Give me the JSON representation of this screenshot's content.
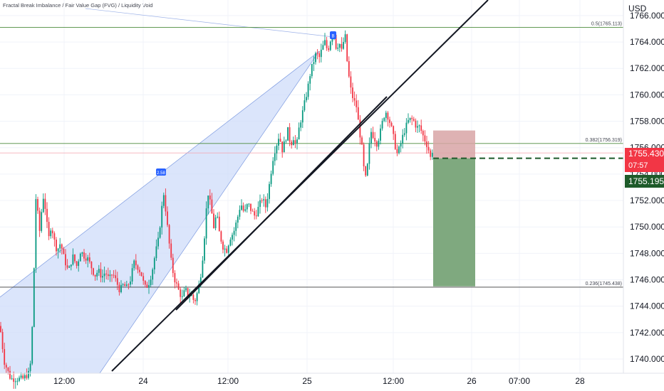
{
  "indicator_title": "Fractal Break Imbalance / Fair Value Gap (FVG) / Liquidity Void",
  "currency": "USD",
  "colors": {
    "up": "#089981",
    "down": "#f23645",
    "fib_line": "#4b8b3b",
    "fib_mid_line": "#1e5a2a",
    "triangle_fill": "#cfdcfa",
    "stop_zone": "#d8a4a6",
    "target_zone": "#7fa97f",
    "current_price_bg": "#f23645",
    "entry_price_bg": "#1e5b2a"
  },
  "price_tags": {
    "current_price": "1755.430",
    "countdown": "07:57",
    "entry_price": "1755.195"
  },
  "markers": [
    {
      "label": "2.58"
    },
    {
      "label": "B"
    }
  ],
  "chart_data": {
    "type": "candlestick",
    "x_tick_labels": [
      "12:00",
      "24",
      "12:00",
      "25",
      "12:00",
      "26",
      "07:00",
      "28"
    ],
    "y_tick_labels": [
      "1740.000",
      "1742.000",
      "1744.000",
      "1746.000",
      "1748.000",
      "1750.000",
      "1752.000",
      "1754.000",
      "1756.000",
      "1758.000",
      "1760.000",
      "1762.000",
      "1764.000",
      "1766.000"
    ],
    "ylim": [
      1739.6,
      1766.6
    ],
    "fib_levels": [
      {
        "label": "0.5(1765.113)",
        "value": 1765.113
      },
      {
        "label": "0.382(1756.319)",
        "value": 1756.319
      },
      {
        "label": "0.236(1745.438)",
        "value": 1745.438
      }
    ],
    "pink_reference_level": 1755.6,
    "position": {
      "entry": 1755.195,
      "stop": 1757.3,
      "target": 1745.5
    },
    "price_path": [
      [
        0,
        1742.5
      ],
      [
        6,
        1739.8
      ],
      [
        15,
        1738.5
      ],
      [
        32,
        1738.5
      ],
      [
        42,
        1739.0
      ],
      [
        45,
        1742.0
      ],
      [
        47,
        1745.5
      ],
      [
        49,
        1749.0
      ],
      [
        51,
        1753.5
      ],
      [
        53,
        1751.0
      ],
      [
        56,
        1749.5
      ],
      [
        60,
        1752.5
      ],
      [
        64,
        1751.3
      ],
      [
        68,
        1749.0
      ],
      [
        72,
        1750.2
      ],
      [
        76,
        1749.0
      ],
      [
        80,
        1748.2
      ],
      [
        85,
        1748.8
      ],
      [
        90,
        1747.6
      ],
      [
        96,
        1746.6
      ],
      [
        102,
        1747.8
      ],
      [
        108,
        1747.0
      ],
      [
        113,
        1748.2
      ],
      [
        118,
        1747.8
      ],
      [
        123,
        1747.6
      ],
      [
        128,
        1747.0
      ],
      [
        133,
        1746.3
      ],
      [
        138,
        1746.7
      ],
      [
        143,
        1746.2
      ],
      [
        148,
        1746.6
      ],
      [
        153,
        1746.0
      ],
      [
        158,
        1746.5
      ],
      [
        163,
        1745.9
      ],
      [
        168,
        1745.2
      ],
      [
        173,
        1745.6
      ],
      [
        178,
        1745.4
      ],
      [
        183,
        1746.0
      ],
      [
        188,
        1747.3
      ],
      [
        193,
        1747.0
      ],
      [
        198,
        1746.5
      ],
      [
        203,
        1745.4
      ],
      [
        208,
        1745.6
      ],
      [
        213,
        1746.5
      ],
      [
        218,
        1748.0
      ],
      [
        223,
        1749.2
      ],
      [
        226,
        1751.0
      ],
      [
        230,
        1752.6
      ],
      [
        234,
        1750.5
      ],
      [
        237,
        1749.0
      ],
      [
        240,
        1747.5
      ],
      [
        244,
        1746.2
      ],
      [
        248,
        1745.6
      ],
      [
        252,
        1745.0
      ],
      [
        256,
        1744.6
      ],
      [
        260,
        1745.3
      ],
      [
        264,
        1744.8
      ],
      [
        268,
        1744.9
      ],
      [
        273,
        1744.3
      ],
      [
        278,
        1745.2
      ],
      [
        282,
        1746.5
      ],
      [
        286,
        1748.5
      ],
      [
        289,
        1751.0
      ],
      [
        292,
        1752.6
      ],
      [
        296,
        1751.5
      ],
      [
        300,
        1750.0
      ],
      [
        304,
        1751.0
      ],
      [
        308,
        1749.5
      ],
      [
        313,
        1748.5
      ],
      [
        318,
        1748.2
      ],
      [
        323,
        1749.2
      ],
      [
        328,
        1749.6
      ],
      [
        333,
        1750.6
      ],
      [
        338,
        1751.8
      ],
      [
        343,
        1751.0
      ],
      [
        348,
        1751.8
      ],
      [
        353,
        1751.2
      ],
      [
        358,
        1750.8
      ],
      [
        363,
        1751.5
      ],
      [
        368,
        1752.2
      ],
      [
        373,
        1751.5
      ],
      [
        377,
        1752.8
      ],
      [
        380,
        1754.0
      ],
      [
        384,
        1755.5
      ],
      [
        388,
        1756.2
      ],
      [
        392,
        1757.0
      ],
      [
        396,
        1755.8
      ],
      [
        400,
        1756.5
      ],
      [
        404,
        1757.3
      ],
      [
        408,
        1756.2
      ],
      [
        412,
        1756.8
      ],
      [
        416,
        1756.0
      ],
      [
        420,
        1757.6
      ],
      [
        424,
        1758.5
      ],
      [
        428,
        1759.5
      ],
      [
        432,
        1760.5
      ],
      [
        436,
        1761.8
      ],
      [
        440,
        1762.5
      ],
      [
        444,
        1763.2
      ],
      [
        448,
        1762.8
      ],
      [
        452,
        1763.5
      ],
      [
        456,
        1764.0
      ],
      [
        460,
        1763.3
      ],
      [
        464,
        1764.2
      ],
      [
        468,
        1765.0
      ],
      [
        472,
        1763.5
      ],
      [
        476,
        1764.0
      ],
      [
        480,
        1763.2
      ],
      [
        484,
        1764.8
      ],
      [
        488,
        1762.0
      ],
      [
        492,
        1760.5
      ],
      [
        496,
        1759.6
      ],
      [
        500,
        1759.2
      ],
      [
        504,
        1757.5
      ],
      [
        508,
        1756.0
      ],
      [
        511,
        1754.2
      ],
      [
        514,
        1753.5
      ],
      [
        518,
        1756.0
      ],
      [
        521,
        1757.2
      ],
      [
        525,
        1756.8
      ],
      [
        529,
        1756.3
      ],
      [
        533,
        1757.0
      ],
      [
        537,
        1758.0
      ],
      [
        541,
        1758.8
      ],
      [
        545,
        1758.3
      ],
      [
        549,
        1757.6
      ],
      [
        553,
        1756.6
      ],
      [
        557,
        1755.5
      ],
      [
        561,
        1756.0
      ],
      [
        565,
        1756.8
      ],
      [
        569,
        1757.5
      ],
      [
        573,
        1758.0
      ],
      [
        577,
        1758.2
      ],
      [
        581,
        1758.0
      ],
      [
        585,
        1757.5
      ],
      [
        589,
        1757.6
      ],
      [
        593,
        1757.0
      ],
      [
        597,
        1756.5
      ],
      [
        601,
        1756.0
      ],
      [
        604,
        1755.2
      ],
      [
        607,
        1755.8
      ],
      [
        611,
        1755.43
      ]
    ]
  }
}
